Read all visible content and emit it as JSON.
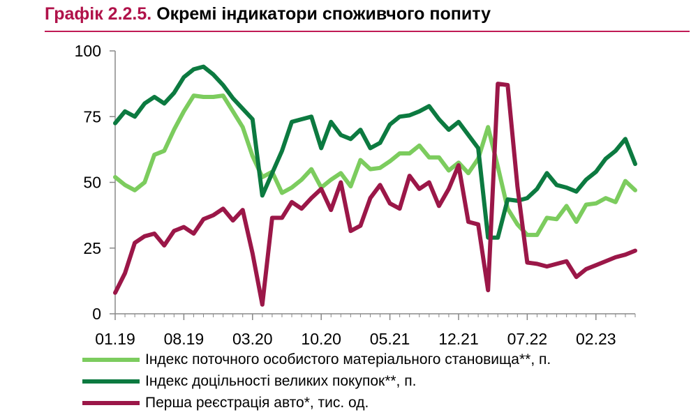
{
  "header": {
    "figure_number": "Графік 2.2.5.",
    "title_text": "Окремі індикатори споживчого попиту"
  },
  "colors": {
    "title_accent": "#b0124a",
    "series_light_green": "#7ccc5e",
    "series_dark_green": "#0c7a40",
    "series_maroon": "#9b1748"
  },
  "chart_data": {
    "type": "line",
    "title": "Окремі індикатори споживчого попиту",
    "xlabel": "",
    "ylabel": "",
    "ylim": [
      0,
      100
    ],
    "yticks": [
      "0",
      "25",
      "50",
      "75",
      "100"
    ],
    "xticks": [
      "01.19",
      "08.19",
      "03.20",
      "10.20",
      "05.21",
      "12.21",
      "07.22",
      "02.23"
    ],
    "grid": false,
    "legend_position": "bottom",
    "series": [
      {
        "name": "Індекс поточного особистого матеріального становища**, п.",
        "color": "#7ccc5e",
        "values": [
          52,
          49,
          47,
          50,
          60.5,
          62,
          70,
          77,
          83,
          82.5,
          82.5,
          83,
          77,
          71,
          60,
          52,
          54,
          46,
          48,
          51,
          55,
          48,
          51,
          53.5,
          48.5,
          58.5,
          55,
          55.5,
          58,
          61,
          61,
          64,
          59.5,
          59.5,
          54.5,
          57.5,
          53.5,
          59,
          71,
          56,
          40,
          34,
          30,
          30,
          36.5,
          36,
          41,
          35,
          41.5,
          42,
          44,
          42.5,
          50.5,
          47
        ]
      },
      {
        "name": "Індекс доцільності великих покупок**, п.",
        "color": "#0c7a40",
        "values": [
          72.5,
          77,
          75,
          80,
          82.5,
          80,
          84,
          90,
          93,
          94,
          91,
          87,
          82,
          78,
          74,
          45,
          53.5,
          62,
          73,
          74,
          75,
          63,
          73,
          68,
          66.5,
          70,
          63,
          65,
          72,
          75,
          75.5,
          77,
          79,
          74,
          70,
          73,
          68,
          63,
          29,
          29,
          43.5,
          43,
          44,
          47.5,
          53.5,
          49,
          48,
          46.5,
          51,
          54,
          59,
          62,
          66.5,
          57
        ]
      },
      {
        "name": "Перша реєстрація авто*, тис. од.",
        "color": "#9b1748",
        "values": [
          8,
          15.5,
          27,
          29.5,
          30.5,
          26,
          31.5,
          33,
          30.5,
          36,
          37.5,
          40,
          35.5,
          39.5,
          23,
          3.5,
          36.5,
          36.5,
          42.5,
          40,
          44,
          47.5,
          39.5,
          50,
          31.5,
          33.5,
          44,
          49,
          42,
          40,
          52.5,
          47.5,
          50,
          41,
          47.5,
          56.5,
          35,
          34,
          9,
          87.5,
          87,
          48.5,
          19.5,
          19,
          18,
          19,
          20,
          14,
          17,
          18.5,
          20,
          21.5,
          22.5,
          24
        ]
      }
    ]
  }
}
